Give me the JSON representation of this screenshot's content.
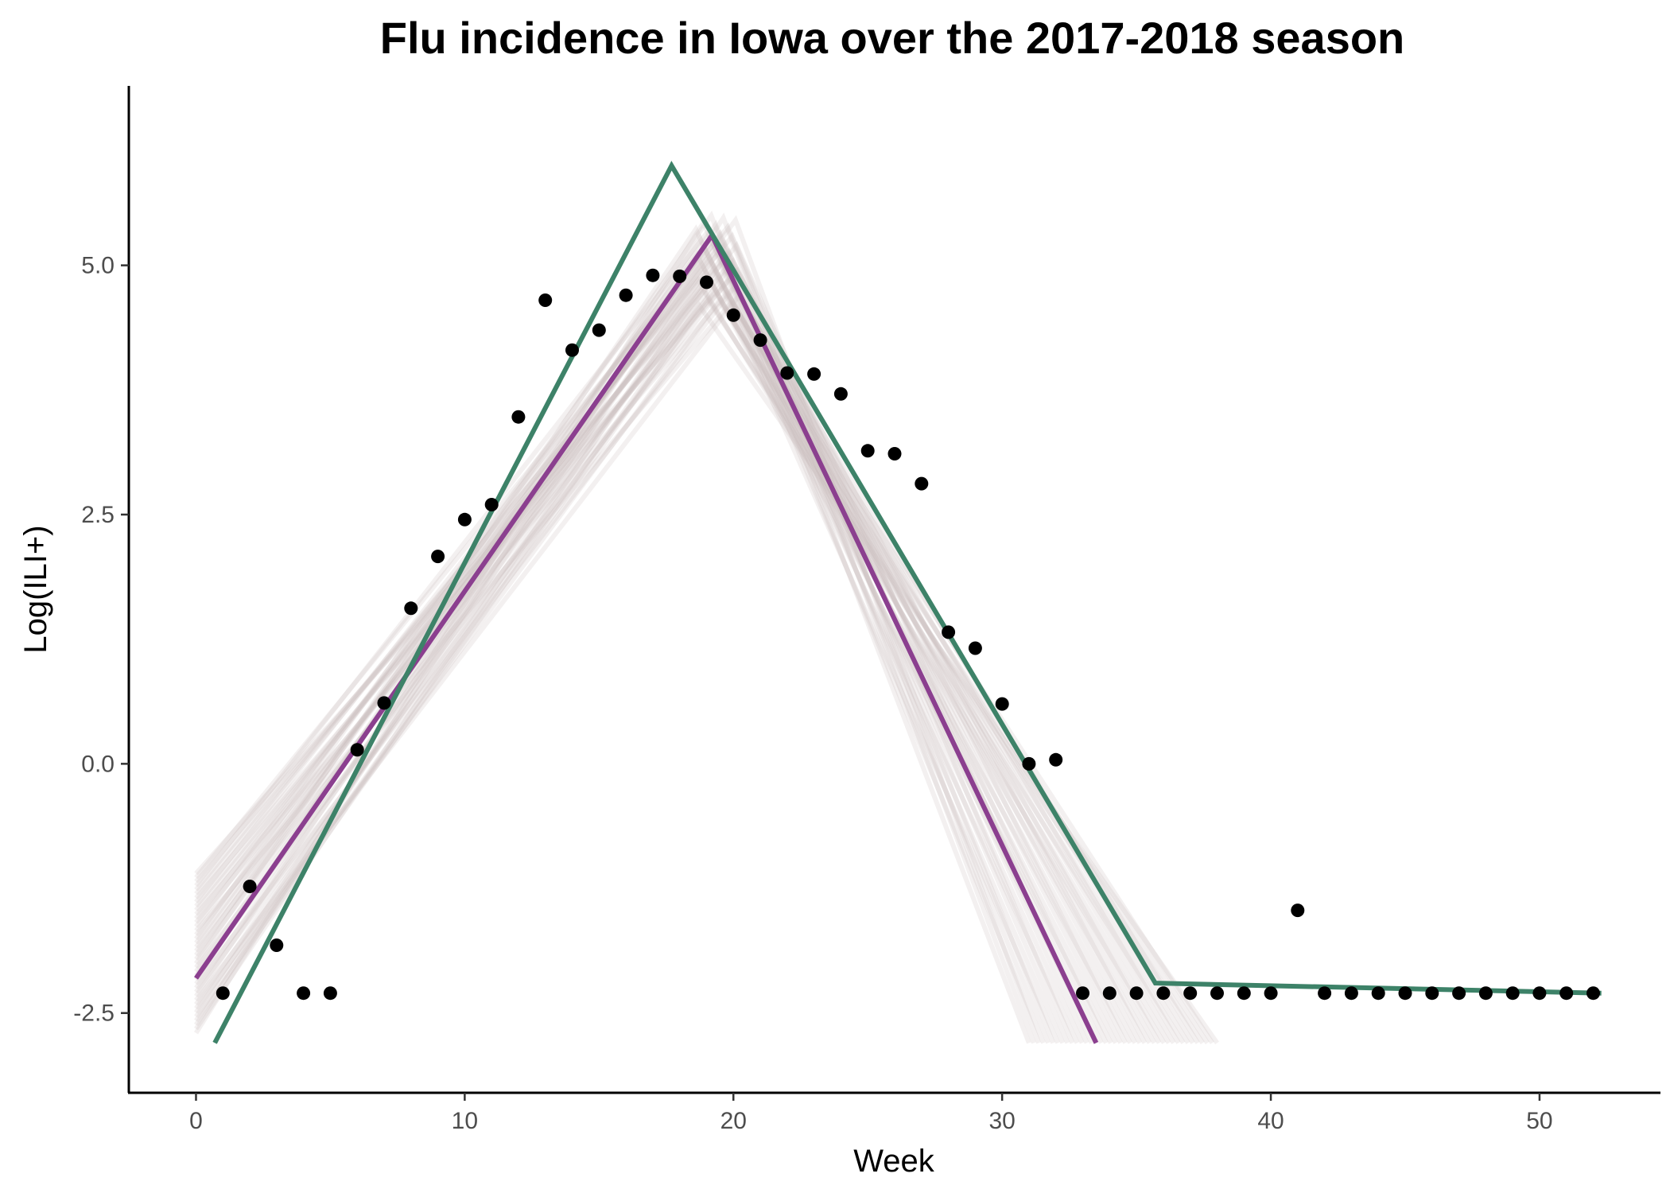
{
  "chart_data": {
    "type": "line",
    "title": "Flu incidence in Iowa over the 2017-2018 season",
    "xlabel": "Week",
    "ylabel": "Log(ILI+)",
    "xlim": [
      -2.5,
      54.5
    ],
    "ylim": [
      -3.3,
      6.8
    ],
    "x_ticks": [
      0,
      10,
      20,
      30,
      40,
      50
    ],
    "x_tick_labels": [
      "0",
      "10",
      "20",
      "30",
      "40",
      "50"
    ],
    "y_ticks": [
      -2.5,
      0,
      2.5,
      5
    ],
    "y_tick_labels": [
      "-2.5",
      "0.0",
      "2.5",
      "5.0"
    ],
    "grid": false,
    "legend": "none",
    "colors": {
      "points": "#000000",
      "purple_line": "#8b3f8f",
      "green_line": "#3d8268",
      "posterior_lines": "#c9bcbc"
    },
    "observed_points": {
      "x": [
        1,
        2,
        3,
        4,
        5,
        6,
        7,
        8,
        9,
        10,
        11,
        12,
        13,
        14,
        15,
        16,
        17,
        18,
        19,
        20,
        21,
        22,
        23,
        24,
        25,
        26,
        27,
        28,
        29,
        30,
        31,
        32,
        33,
        34,
        35,
        36,
        37,
        38,
        39,
        40,
        41,
        42,
        43,
        44,
        45,
        46,
        47,
        48,
        49,
        50,
        51,
        52
      ],
      "y": [
        -2.3,
        -1.23,
        -1.82,
        -2.3,
        -2.3,
        0.14,
        0.61,
        1.56,
        2.08,
        2.45,
        2.6,
        3.48,
        4.65,
        4.15,
        4.35,
        4.7,
        4.9,
        4.89,
        4.83,
        4.5,
        4.25,
        3.92,
        3.91,
        3.71,
        3.14,
        3.11,
        2.81,
        1.32,
        1.16,
        0.6,
        0.0,
        0.04,
        -2.3,
        -2.3,
        -2.3,
        -2.3,
        -2.3,
        -2.3,
        -2.3,
        -2.3,
        -1.47,
        -2.3,
        -2.3,
        -2.3,
        -2.3,
        -2.3,
        -2.3,
        -2.3,
        -2.3,
        -2.3,
        -2.3,
        -2.3
      ]
    },
    "series": [
      {
        "x": [
          0.7,
          17.7,
          35.7,
          52.3
        ],
        "y": [
          -2.8,
          6.0,
          -2.2,
          -2.3
        ]
      },
      {
        "x": [
          0,
          19.2,
          33.5
        ],
        "y": [
          -2.15,
          5.3,
          -2.8
        ]
      }
    ],
    "posterior_band": {
      "count": 40,
      "start_x": [
        0,
        0
      ],
      "start_y": [
        -2.7,
        -1.1
      ],
      "peak_x": [
        18.6,
        20.2
      ],
      "peak_y": [
        4.6,
        5.5
      ],
      "end_x": [
        31,
        38
      ],
      "end_y": -2.8
    }
  }
}
